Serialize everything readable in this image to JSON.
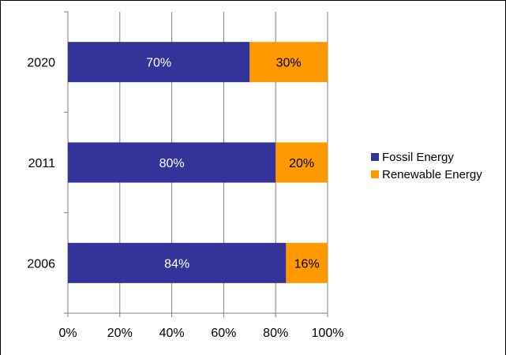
{
  "chart_data": {
    "type": "bar",
    "orientation": "horizontal",
    "stacked": "percent",
    "categories": [
      "2006",
      "2011",
      "2020"
    ],
    "series": [
      {
        "name": "Fossil Energy",
        "values": [
          84,
          80,
          70
        ],
        "labels": [
          "84%",
          "80%",
          "70%"
        ],
        "color": "#333399"
      },
      {
        "name": "Renewable Energy",
        "values": [
          16,
          20,
          30
        ],
        "labels": [
          "16%",
          "20%",
          "30%"
        ],
        "color": "#FF9900"
      }
    ],
    "xlim": [
      0,
      100
    ],
    "x_ticks": [
      "0%",
      "20%",
      "40%",
      "60%",
      "80%",
      "100%"
    ],
    "grid": "vertical",
    "legend_position": "right",
    "title": "",
    "xlabel": "",
    "ylabel": ""
  }
}
